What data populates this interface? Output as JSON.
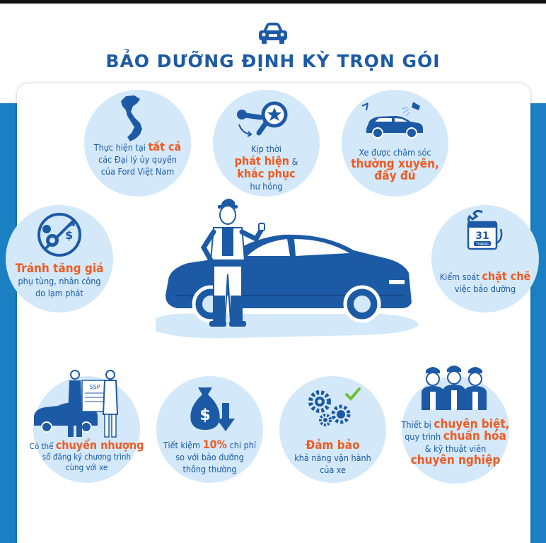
{
  "title": "BẢO DƯỠNG ĐỊNH KỲ TRỌN GÓI",
  "benefits": {
    "dealers": {
      "pre": "Thực hiện tại ",
      "hl": "tất cả",
      "rest1": "các Đại lý ủy quyền",
      "rest2": "của Ford Việt Nam"
    },
    "detect": {
      "l1": "Kịp thời",
      "hl1": "phát hiện",
      "amp": " &",
      "hl2": "khắc phục",
      "l2": "hư hỏng"
    },
    "care": {
      "l1": "Xe được chăm sóc",
      "hl1": "thường xuyên,",
      "hl2": "đầy đủ"
    },
    "price": {
      "hl": "Tránh tăng giá",
      "l1": "phụ tùng, nhân công",
      "l2": "do lạm phát"
    },
    "control": {
      "pre": "Kiểm soát ",
      "hl": "chặt chẽ",
      "l1": "việc bảo dưỡng",
      "cal_day": "31",
      "cal_month": "THÁNG"
    },
    "transfer": {
      "pre": "Có thể ",
      "hl": "chuyển nhượng",
      "l1": "sổ đăng ký chương trình",
      "l2": "cùng với xe",
      "doc_label": "SSP"
    },
    "save": {
      "pre": "Tiết kiệm ",
      "hl": "10%",
      "post": " chi phí",
      "l1": "so với bảo dưỡng",
      "l2": "thông thường"
    },
    "ensure": {
      "hl": "Đảm bảo",
      "l1": "khả năng vận hành",
      "l2": "của xe"
    },
    "equip": {
      "pre": "Thiết bị ",
      "hl1": "chuyên biệt,",
      "l1pre": "quy trình ",
      "hl2": "chuẩn hóa",
      "l2": "& kỹ thuật viên",
      "hl3": "chuyên nghiệp"
    }
  },
  "colors": {
    "primary": "#1d5aa6",
    "accent": "#f05a22",
    "circle": "#d3e8f8",
    "background": "#1a80c3"
  }
}
